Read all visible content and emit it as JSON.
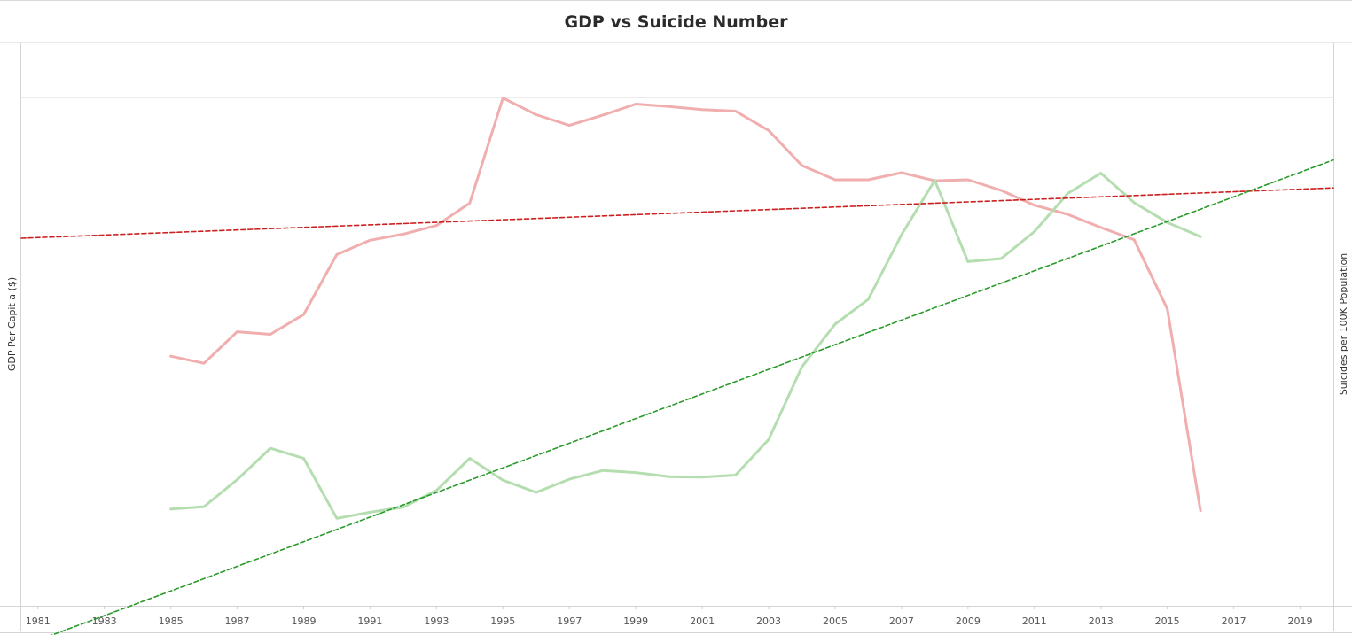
{
  "chart_data": {
    "type": "line",
    "title": "GDP vs Suicide Number",
    "ylabel_left": "GDP Per Capit a ($)",
    "ylabel_right": "Suicides per 100K Population",
    "x_ticks": [
      1981,
      1983,
      1985,
      1987,
      1989,
      1991,
      1993,
      1995,
      1997,
      1999,
      2001,
      2003,
      2005,
      2007,
      2009,
      2011,
      2013,
      2015,
      2017,
      2019
    ],
    "xlim": [
      1980.5,
      2020
    ],
    "ylim_left": [
      0,
      1
    ],
    "ylim_right": [
      0,
      1
    ],
    "grid": true,
    "series": [
      {
        "name": "",
        "axis": "left",
        "style": "solid",
        "color": "#f0aeae",
        "x": [
          1985,
          1986,
          1987,
          1988,
          1989,
          1990,
          1991,
          1992,
          1993,
          1994,
          1995,
          1996,
          1997,
          1998,
          1999,
          2000,
          2001,
          2002,
          2003,
          2004,
          2005,
          2006,
          2007,
          2008,
          2009,
          2010,
          2011,
          2012,
          2013,
          2014,
          2015,
          2016
        ],
        "y": [
          0.491,
          0.477,
          0.539,
          0.534,
          0.573,
          0.691,
          0.719,
          0.731,
          0.748,
          0.792,
          0.999,
          0.966,
          0.945,
          0.965,
          0.987,
          0.982,
          0.976,
          0.973,
          0.935,
          0.866,
          0.838,
          0.838,
          0.852,
          0.836,
          0.838,
          0.817,
          0.788,
          0.77,
          0.744,
          0.72,
          0.584,
          0.187
        ]
      },
      {
        "name": "",
        "axis": "right",
        "style": "solid",
        "color": "#b5deb0",
        "x": [
          1985,
          1986,
          1987,
          1988,
          1989,
          1990,
          1991,
          1992,
          1993,
          1994,
          1995,
          1996,
          1997,
          1998,
          1999,
          2000,
          2001,
          2002,
          2003,
          2004,
          2005,
          2006,
          2007,
          2008,
          2009,
          2010,
          2011,
          2012,
          2013,
          2014,
          2015,
          2016
        ],
        "y": [
          0.19,
          0.195,
          0.248,
          0.31,
          0.29,
          0.172,
          0.184,
          0.194,
          0.227,
          0.29,
          0.247,
          0.223,
          0.249,
          0.266,
          0.262,
          0.254,
          0.253,
          0.257,
          0.327,
          0.47,
          0.554,
          0.603,
          0.73,
          0.837,
          0.677,
          0.683,
          0.736,
          0.811,
          0.851,
          0.793,
          0.754,
          0.726
        ]
      },
      {
        "name": "",
        "axis": "left",
        "style": "dashed",
        "color": "#cc1f1f",
        "x": [
          1980.5,
          2020
        ],
        "y": [
          0.723,
          0.822
        ]
      },
      {
        "name": "",
        "axis": "right",
        "style": "dashed",
        "color": "#2a9a2a",
        "x": [
          1980.5,
          2020
        ],
        "y": [
          -0.08,
          0.877
        ]
      }
    ]
  }
}
